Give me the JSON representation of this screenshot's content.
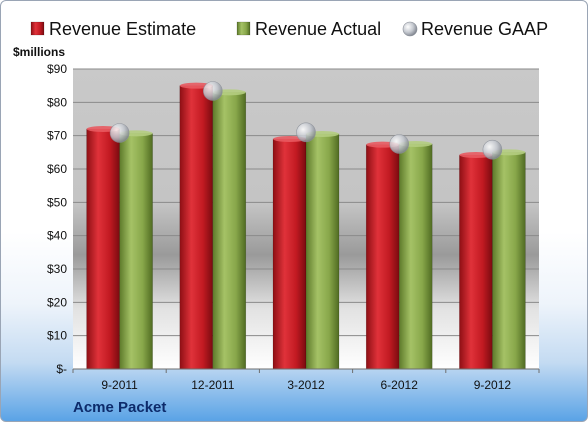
{
  "chart_data": {
    "type": "bar",
    "ylabel": "$millions",
    "company": "Acme Packet",
    "categories": [
      "9-2011",
      "12-2011",
      "3-2012",
      "6-2012",
      "9-2012"
    ],
    "yticks": [
      "$-",
      "$10",
      "$20",
      "$30",
      "$40",
      "$50",
      "$60",
      "$70",
      "$80",
      "$90"
    ],
    "ylim": [
      0,
      90
    ],
    "legend_position": "top",
    "grid": true,
    "series": [
      {
        "name": "Revenue Estimate",
        "kind": "bar",
        "color": "#cc1f26",
        "values": [
          72,
          85,
          69,
          67.3,
          64.2
        ]
      },
      {
        "name": "Revenue Actual",
        "kind": "bar",
        "color": "#8fae4f",
        "values": [
          70.7,
          83,
          70.5,
          67.5,
          65
        ]
      },
      {
        "name": "Revenue GAAP",
        "kind": "marker",
        "color": "#b8bcc4",
        "values": [
          70.8,
          83.4,
          71,
          67.5,
          65.8
        ]
      }
    ]
  }
}
